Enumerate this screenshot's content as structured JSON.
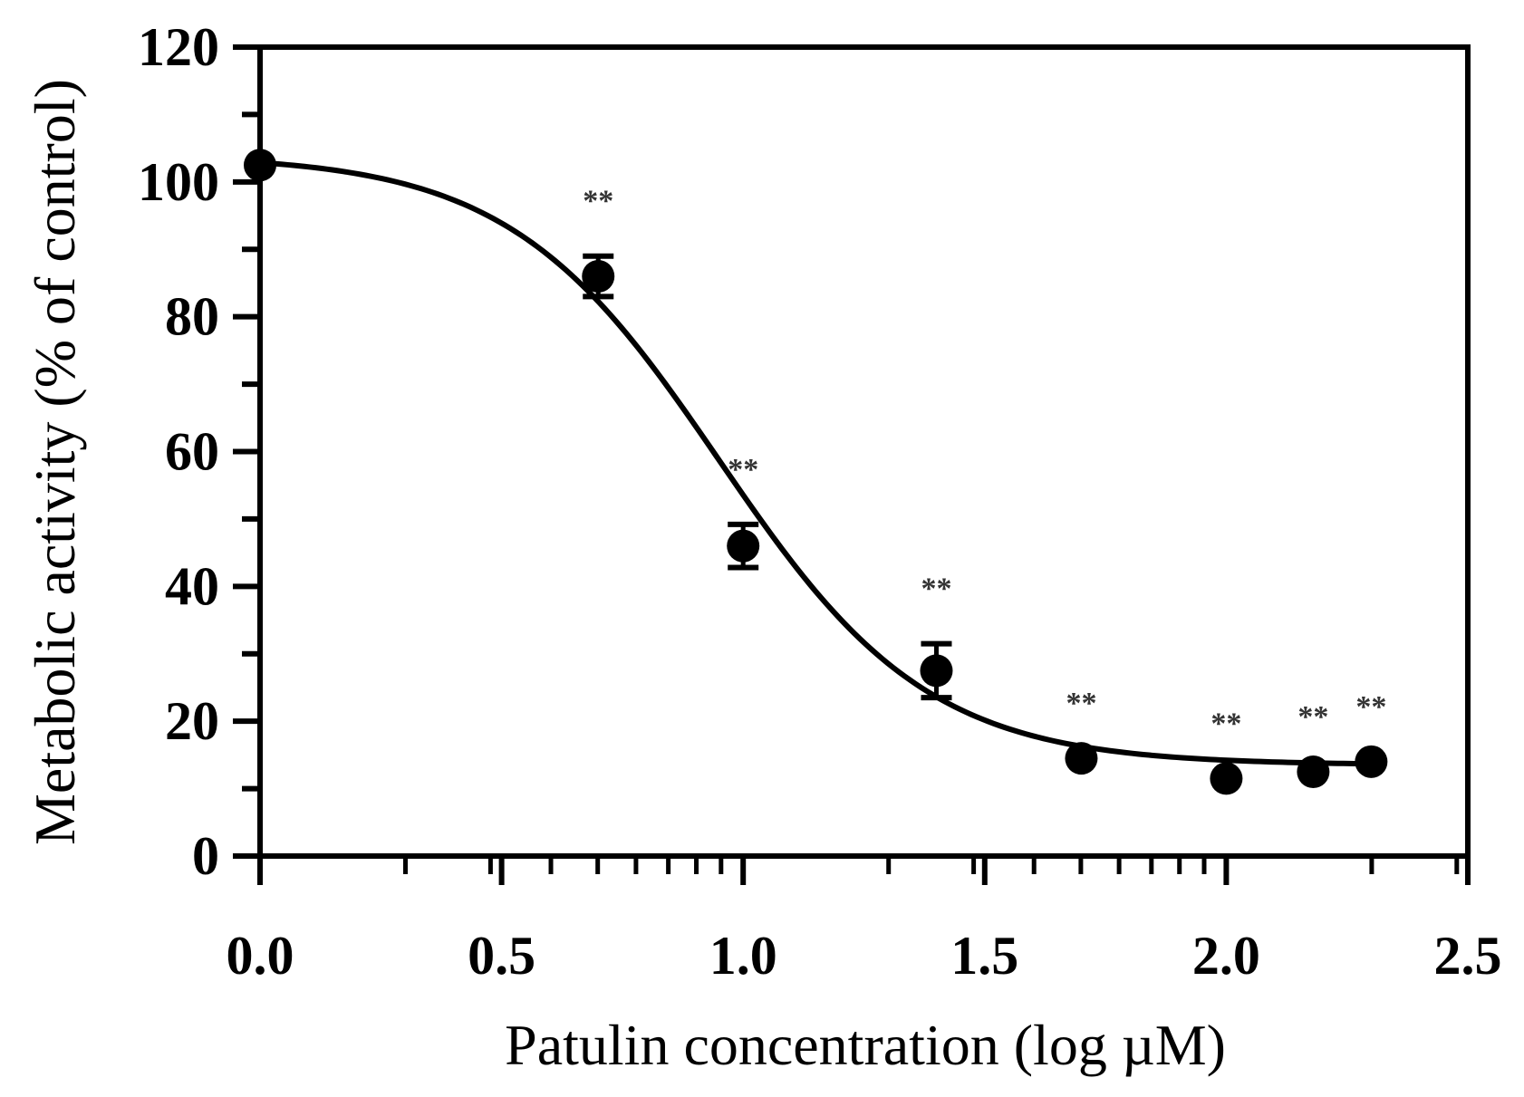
{
  "chart_data": {
    "type": "scatter",
    "title": "",
    "xlabel": "Patulin concentration (log µM)",
    "ylabel": "Metabolic activity (% of control)",
    "xlim": [
      0,
      2.5
    ],
    "ylim": [
      0,
      120
    ],
    "x_ticks": [
      "0.0",
      "0.5",
      "1.0",
      "1.5",
      "2.0",
      "2.5"
    ],
    "y_ticks": [
      "0",
      "20",
      "40",
      "60",
      "80",
      "100",
      "120"
    ],
    "grid": false,
    "legend": "none",
    "points": [
      {
        "x": 0.0,
        "y": 102.5,
        "err": 0,
        "sig": ""
      },
      {
        "x": 0.7,
        "y": 86.0,
        "err": 3.0,
        "sig": "**"
      },
      {
        "x": 1.0,
        "y": 46.0,
        "err": 3.2,
        "sig": "**"
      },
      {
        "x": 1.4,
        "y": 27.5,
        "err": 4.0,
        "sig": "**"
      },
      {
        "x": 1.7,
        "y": 14.5,
        "err": 0,
        "sig": "**"
      },
      {
        "x": 2.0,
        "y": 11.5,
        "err": 0,
        "sig": "**"
      },
      {
        "x": 2.18,
        "y": 12.5,
        "err": 0,
        "sig": "**"
      },
      {
        "x": 2.3,
        "y": 14.0,
        "err": 0,
        "sig": "**"
      }
    ],
    "fit_curve": {
      "model": "four-parameter logistic",
      "top": 104,
      "bottom": 13.5,
      "log_ic50": 0.95,
      "hill_slope": -2.0
    },
    "colors": {
      "marker": "#000000",
      "curve": "#000000",
      "axis": "#000000",
      "sig": "#333333"
    }
  }
}
